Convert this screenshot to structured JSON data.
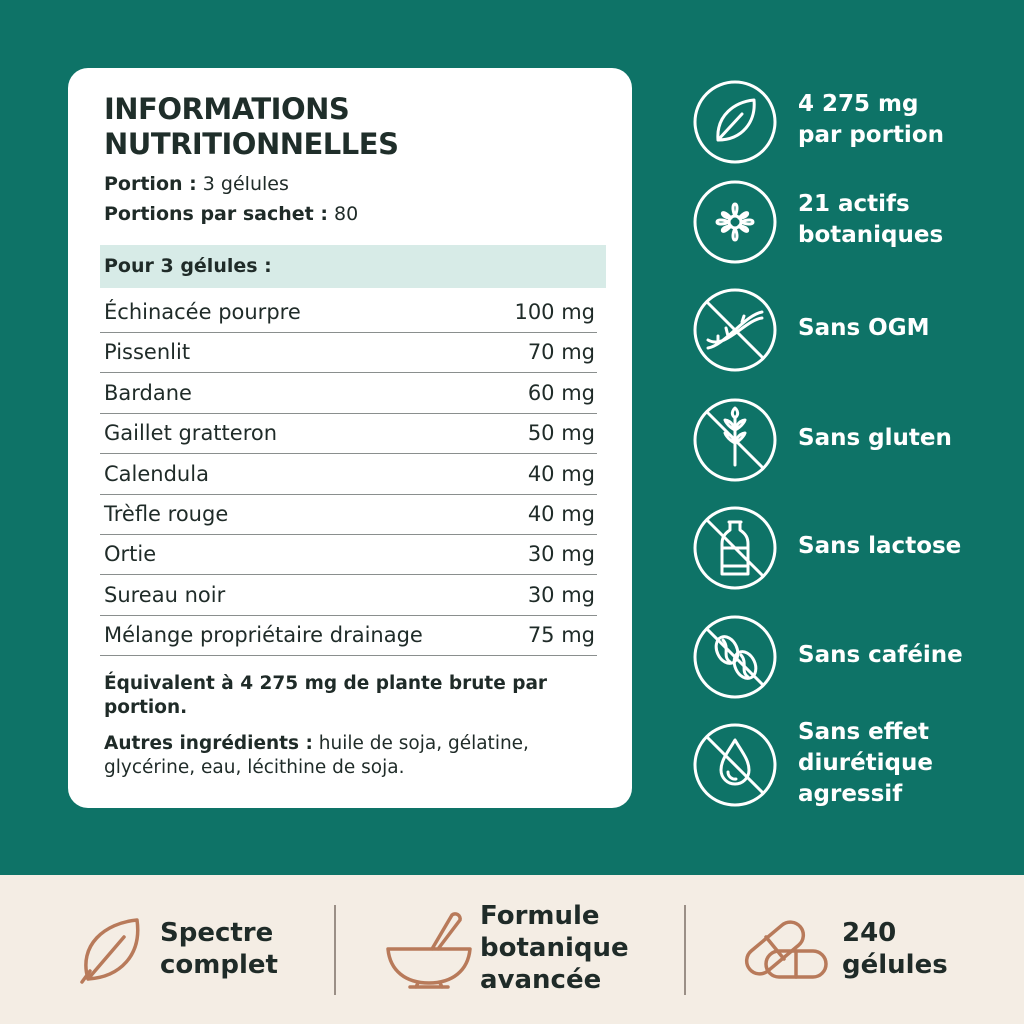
{
  "card": {
    "title": [
      "INFORMATIONS",
      "NUTRITIONNELLES"
    ],
    "serving": {
      "label": "Portion :",
      "value": "3 gélules"
    },
    "servings_per_pack": {
      "label": "Portions par sachet :",
      "value": "80"
    },
    "table_header": "Pour 3 gélules :",
    "rows": [
      [
        "Échinacée pourpre",
        "100 mg"
      ],
      [
        "Pissenlit",
        "70 mg"
      ],
      [
        "Bardane",
        "60 mg"
      ],
      [
        "Gaillet gratteron",
        "50 mg"
      ],
      [
        "Calendula",
        "40 mg"
      ],
      [
        "Trèfle rouge",
        "40 mg"
      ],
      [
        "Ortie",
        "30 mg"
      ],
      [
        "Sureau noir",
        "30 mg"
      ],
      [
        "Mélange propriétaire drainage",
        "75 mg"
      ]
    ],
    "equivalent": "Équivalent à 4 275 mg de plante brute par portion.",
    "other_ingredients": {
      "label": "Autres ingrédients :",
      "value": "huile de soja, gélatine, glycérine, eau, lécithine de soja."
    }
  },
  "features": [
    [
      "4 275 mg",
      "par portion"
    ],
    [
      "21 actifs",
      "botaniques"
    ],
    [
      "Sans OGM"
    ],
    [
      "Sans gluten"
    ],
    [
      "Sans lactose"
    ],
    [
      "Sans caféine"
    ],
    [
      "Sans effet",
      "diurétique",
      "agressif"
    ]
  ],
  "footer": [
    [
      "Spectre",
      "complet"
    ],
    [
      "Formule",
      "botanique",
      "avancée"
    ],
    [
      "240",
      "gélules"
    ]
  ]
}
